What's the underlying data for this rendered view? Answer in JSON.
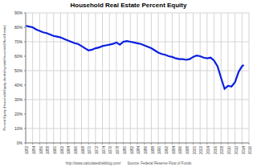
{
  "chart_data": {
    "type": "line",
    "title": "Household Real Estate Percent Equity",
    "y_label": "Percent Equity (Household Equity divided by total Household Real Estate)",
    "annotations": [
      "http://www.calculatedriskblog.com/",
      "Source: Federal Reserve Flow of Funds"
    ],
    "x": [
      1952,
      1953,
      1954,
      1955,
      1956,
      1957,
      1958,
      1959,
      1960,
      1961,
      1962,
      1963,
      1964,
      1965,
      1966,
      1967,
      1968,
      1969,
      1970,
      1971,
      1972,
      1973,
      1974,
      1975,
      1976,
      1977,
      1978,
      1979,
      1980,
      1981,
      1982,
      1983,
      1984,
      1985,
      1986,
      1987,
      1988,
      1989,
      1990,
      1991,
      1992,
      1993,
      1994,
      1995,
      1996,
      1997,
      1998,
      1999,
      2000,
      2001,
      2002,
      2003,
      2004,
      2005,
      2006,
      2007,
      2008,
      2009,
      2010,
      2011,
      2012,
      2013,
      2014,
      2014.5
    ],
    "values": [
      81,
      80.5,
      80,
      78.5,
      77.5,
      76.5,
      76,
      75,
      74,
      73.5,
      73,
      72,
      71,
      70,
      69,
      68.5,
      67,
      65.5,
      64,
      64.5,
      65.5,
      66,
      67,
      67.5,
      68,
      68.5,
      69.5,
      68,
      70,
      70.5,
      70,
      69.5,
      69,
      68.5,
      67.5,
      66.5,
      65.5,
      64,
      62.5,
      61.5,
      61,
      60,
      59.5,
      58.5,
      58,
      58,
      57.5,
      58,
      59.5,
      60.5,
      60,
      59,
      58.5,
      59,
      57,
      53,
      45,
      37.5,
      39.5,
      39,
      42,
      49,
      53,
      54
    ],
    "color": "#0a1fe0",
    "xlim": [
      1952,
      2016
    ],
    "xticks": [
      1952,
      1954,
      1956,
      1958,
      1960,
      1962,
      1964,
      1966,
      1968,
      1970,
      1972,
      1974,
      1976,
      1978,
      1980,
      1982,
      1984,
      1986,
      1988,
      1990,
      1992,
      1994,
      1996,
      1998,
      2000,
      2002,
      2004,
      2006,
      2008,
      2010,
      2012,
      2014,
      2016
    ],
    "ylim": [
      0,
      90
    ],
    "yticks": [
      {
        "value": 0,
        "label": "0%"
      },
      {
        "value": 10,
        "label": "10%"
      },
      {
        "value": 20,
        "label": "20%"
      },
      {
        "value": 30,
        "label": "30%"
      },
      {
        "value": 40,
        "label": "40%"
      },
      {
        "value": 50,
        "label": "50%"
      },
      {
        "value": 60,
        "label": "60%"
      },
      {
        "value": 70,
        "label": "70%"
      },
      {
        "value": 80,
        "label": "80%"
      },
      {
        "value": 90,
        "label": "90%"
      }
    ],
    "grid": true
  }
}
